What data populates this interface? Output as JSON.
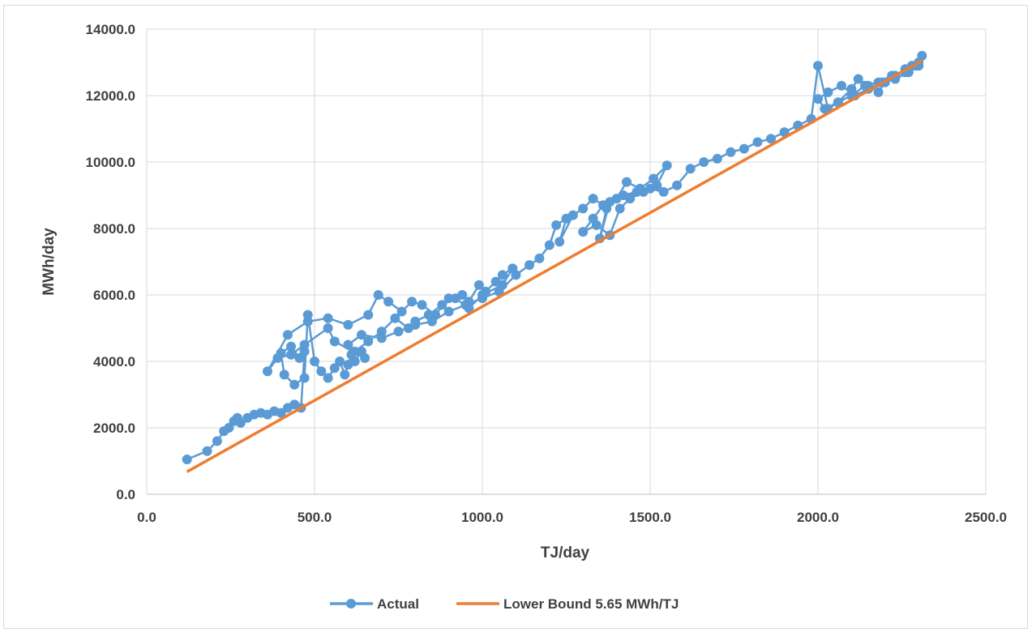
{
  "chart_data": {
    "type": "line",
    "title": "",
    "xlabel": "TJ/day",
    "ylabel": "MWh/day",
    "xlim": [
      0,
      2500
    ],
    "ylim": [
      0,
      14000
    ],
    "x_ticks": [
      "0.0",
      "500.0",
      "1000.0",
      "1500.0",
      "2000.0",
      "2500.0"
    ],
    "y_ticks": [
      "0.0",
      "2000.0",
      "4000.0",
      "6000.0",
      "8000.0",
      "10000.0",
      "12000.0",
      "14000.0"
    ],
    "grid": true,
    "legend_position": "bottom",
    "series": [
      {
        "name": "Actual",
        "color": "#5b9bd5",
        "markers": true,
        "x": [
          120,
          180,
          210,
          230,
          245,
          260,
          270,
          280,
          300,
          320,
          340,
          360,
          380,
          400,
          420,
          440,
          460,
          470,
          455,
          430,
          400,
          410,
          440,
          470,
          480,
          500,
          520,
          540,
          560,
          575,
          590,
          600,
          610,
          620,
          640,
          650,
          560,
          540,
          470,
          430,
          390,
          360,
          420,
          480,
          540,
          600,
          660,
          690,
          720,
          760,
          790,
          820,
          860,
          900,
          940,
          960,
          990,
          1010,
          1040,
          1060,
          1090,
          1060,
          1000,
          960,
          920,
          880,
          840,
          800,
          780,
          740,
          700,
          660,
          620,
          600,
          640,
          700,
          750,
          800,
          850,
          900,
          950,
          1000,
          1050,
          1100,
          1140,
          1170,
          1200,
          1220,
          1250,
          1230,
          1270,
          1300,
          1330,
          1360,
          1330,
          1300,
          1340,
          1380,
          1410,
          1440,
          1480,
          1520,
          1550,
          1510,
          1470,
          1430,
          1400,
          1370,
          1350,
          1380,
          1420,
          1460,
          1500,
          1540,
          1580,
          1620,
          1660,
          1700,
          1740,
          1780,
          1820,
          1860,
          1900,
          1940,
          1980,
          2000,
          2030,
          2060,
          2100,
          2120,
          2150,
          2180,
          2200,
          2230,
          2260,
          2280,
          2300,
          2310,
          2290,
          2260,
          2220,
          2180,
          2140,
          2100,
          2060,
          2020,
          2000,
          2030,
          2070,
          2110,
          2150,
          2190,
          2230,
          2270,
          2300
        ],
        "y": [
          1050,
          1300,
          1600,
          1900,
          2000,
          2200,
          2300,
          2150,
          2300,
          2400,
          2450,
          2400,
          2500,
          2450,
          2600,
          2700,
          2600,
          4300,
          4100,
          4450,
          4250,
          3600,
          3300,
          3500,
          5400,
          4000,
          3700,
          3500,
          3800,
          4000,
          3600,
          3900,
          4200,
          4000,
          4300,
          4100,
          4600,
          5000,
          4500,
          4200,
          4100,
          3700,
          4800,
          5200,
          5300,
          5100,
          5400,
          6000,
          5800,
          5500,
          5800,
          5700,
          5400,
          5900,
          6000,
          5800,
          6300,
          6100,
          6400,
          6600,
          6800,
          6300,
          6000,
          5600,
          5900,
          5700,
          5400,
          5200,
          5000,
          5300,
          4900,
          4600,
          4300,
          4500,
          4800,
          4700,
          4900,
          5100,
          5200,
          5500,
          5700,
          5900,
          6100,
          6600,
          6900,
          7100,
          7500,
          8100,
          8300,
          7600,
          8400,
          8600,
          8900,
          8700,
          8300,
          7900,
          8100,
          7800,
          8600,
          8900,
          9100,
          9300,
          9900,
          9500,
          9200,
          9400,
          8900,
          8600,
          7700,
          8800,
          9000,
          9100,
          9200,
          9100,
          9300,
          9800,
          10000,
          10100,
          10300,
          10400,
          10600,
          10700,
          10900,
          11100,
          11300,
          12900,
          11600,
          11800,
          12200,
          12500,
          12300,
          12100,
          12400,
          12600,
          12800,
          12900,
          13000,
          13200,
          12900,
          12700,
          12600,
          12400,
          12300,
          12000,
          11800,
          11600,
          11900,
          12100,
          12300,
          12000,
          12200,
          12400,
          12500,
          12700,
          12900
        ]
      },
      {
        "name": "Lower Bound 5.65 MWh/TJ",
        "color": "#ed7d31",
        "markers": false,
        "x": [
          120,
          2310
        ],
        "y": [
          678,
          13051.5
        ]
      }
    ]
  }
}
